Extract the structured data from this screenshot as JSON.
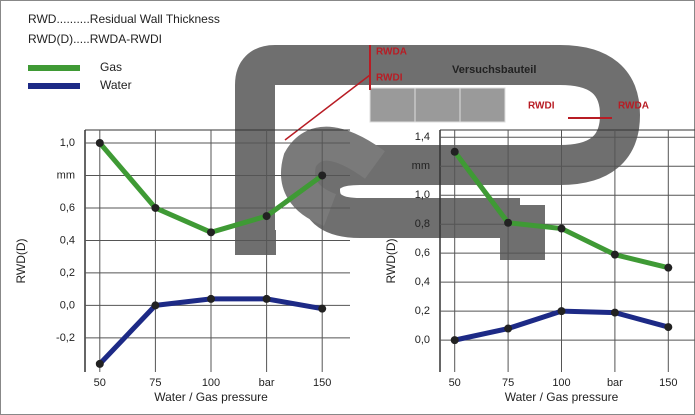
{
  "notes": [
    "RWD..........Residual Wall Thickness",
    "RWD(D).....RWDA-RWDI"
  ],
  "diagram_labels": [
    "RWDA",
    "RWDI",
    "Versuchsbauteil",
    "RWDI",
    "RWDA"
  ],
  "chart_data": [
    {
      "type": "line",
      "x_label": "Water / Gas pressure",
      "y_label": "RWD(D)",
      "categories": [
        "50",
        "75",
        "100",
        "bar",
        "150"
      ],
      "ylim": [
        -0.41,
        1.08
      ],
      "yticks": [
        {
          "value": 1.0,
          "label": "1,0"
        },
        {
          "value": 0.8,
          "label": "mm"
        },
        {
          "value": 0.6,
          "label": "0,6"
        },
        {
          "value": 0.4,
          "label": "0,4"
        },
        {
          "value": 0.2,
          "label": "0,2"
        },
        {
          "value": 0.0,
          "label": "0,0"
        },
        {
          "value": -0.2,
          "label": "-0,2"
        }
      ],
      "series": [
        {
          "name": "Gas",
          "color": "#3f9a35",
          "values": [
            1.0,
            0.6,
            0.45,
            0.55,
            0.8
          ]
        },
        {
          "name": "Water",
          "color": "#1d2a86",
          "values": [
            -0.36,
            0.0,
            0.04,
            0.04,
            -0.02
          ]
        }
      ]
    },
    {
      "type": "line",
      "x_label": "Water / Gas pressure",
      "y_label": "RWD(D)",
      "categories": [
        "50",
        "75",
        "100",
        "bar",
        "150"
      ],
      "ylim": [
        -0.22,
        1.45
      ],
      "yticks": [
        {
          "value": 1.4,
          "label": "1,4"
        },
        {
          "value": 1.2,
          "label": "mm"
        },
        {
          "value": 1.0,
          "label": "1,0"
        },
        {
          "value": 0.8,
          "label": "0,8"
        },
        {
          "value": 0.6,
          "label": "0,6"
        },
        {
          "value": 0.4,
          "label": "0,4"
        },
        {
          "value": 0.2,
          "label": "0,2"
        },
        {
          "value": 0.0,
          "label": "0,0"
        }
      ],
      "series": [
        {
          "color": "#3f9a35",
          "values": [
            1.3,
            0.81,
            0.77,
            0.59,
            0.5
          ]
        },
        {
          "color": "#1d2a86",
          "values": [
            0.0,
            0.08,
            0.2,
            0.19,
            0.09
          ]
        }
      ]
    }
  ]
}
